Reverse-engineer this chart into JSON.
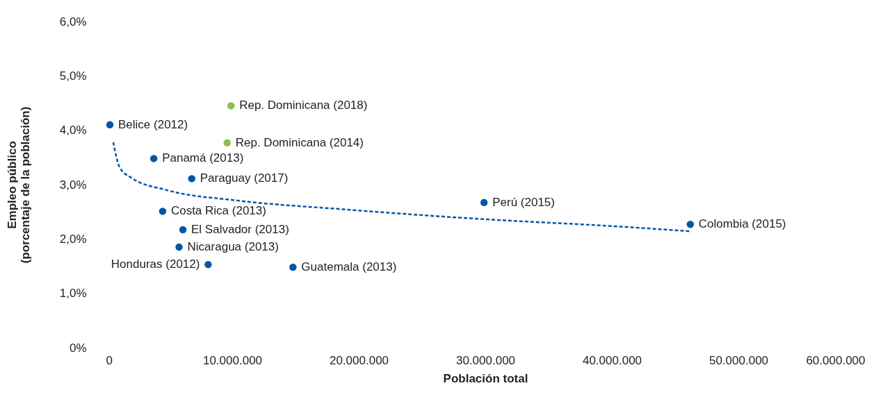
{
  "chart_data": {
    "type": "scatter",
    "xlabel": "Población total",
    "ylabel": "Empleo público\n(porcentaje de la población)",
    "series": [
      {
        "color": "#0057a8",
        "x": [
          330000,
          3800000,
          6800000,
          4500000,
          6100000,
          5800000,
          8100000,
          14800000,
          29900000,
          46200000
        ],
        "values": [
          4.1,
          3.48,
          3.11,
          2.51,
          2.17,
          1.85,
          1.53,
          1.48,
          2.67,
          2.27
        ]
      },
      {
        "color": "#8cc043",
        "x": [
          9900000,
          9600000
        ],
        "values": [
          4.45,
          3.77
        ]
      },
      {
        "type": "line",
        "color": "#0057a8",
        "line_style": "dashed",
        "marker": "none",
        "x": [
          600000,
          1100000,
          2000000,
          4800000,
          10300000,
          18500000,
          29500000,
          40500000,
          46300000
        ],
        "values": [
          3.78,
          3.32,
          3.13,
          2.9,
          2.71,
          2.55,
          2.37,
          2.23,
          2.14
        ]
      }
    ],
    "annotations": [
      {
        "text": "Belice (2012)",
        "x": 330000,
        "y": 4.1
      },
      {
        "text": "Rep. Dominicana (2018)",
        "x": 9900000,
        "y": 4.45
      },
      {
        "text": "Rep. Dominicana (2014)",
        "x": 9600000,
        "y": 3.77
      },
      {
        "text": "Panamá (2013)",
        "x": 3800000,
        "y": 3.48
      },
      {
        "text": "Paraguay (2017)",
        "x": 6800000,
        "y": 3.11
      },
      {
        "text": "Costa Rica (2013)",
        "x": 4500000,
        "y": 2.51
      },
      {
        "text": "El Salvador (2013)",
        "x": 6100000,
        "y": 2.17
      },
      {
        "text": "Nicaragua (2013)",
        "x": 5800000,
        "y": 1.85
      },
      {
        "text": "Honduras (2012)",
        "x": 8100000,
        "y": 1.53
      },
      {
        "text": "Guatemala (2013)",
        "x": 14800000,
        "y": 1.48
      },
      {
        "text": "Perú (2015)",
        "x": 29900000,
        "y": 2.67
      },
      {
        "text": "Colombia (2015)",
        "x": 46200000,
        "y": 2.27
      }
    ],
    "xlim": [
      0,
      60000000
    ],
    "ylim": [
      0,
      6
    ],
    "xticks": [
      {
        "value": 0,
        "label": "0"
      },
      {
        "value": 10000000,
        "label": "10.000.000"
      },
      {
        "value": 20000000,
        "label": "20.000.000"
      },
      {
        "value": 30000000,
        "label": "30.000.000"
      },
      {
        "value": 40000000,
        "label": "40.000.000"
      },
      {
        "value": 50000000,
        "label": "50.000.000"
      },
      {
        "value": 60000000,
        "label": "60.000.000"
      }
    ],
    "yticks": [
      {
        "value": 0,
        "label": "0%"
      },
      {
        "value": 1,
        "label": "1,0%"
      },
      {
        "value": 2,
        "label": "2,0%"
      },
      {
        "value": 3,
        "label": "3,0%"
      },
      {
        "value": 4,
        "label": "4,0%"
      },
      {
        "value": 5,
        "label": "5,0%"
      },
      {
        "value": 6,
        "label": "6,0%"
      }
    ],
    "grid": false,
    "marker": "circle"
  }
}
